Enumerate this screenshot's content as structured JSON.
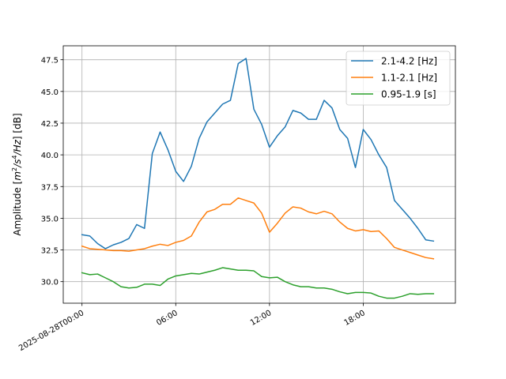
{
  "chart_data": {
    "type": "line",
    "ylabel_prefix": "Amplitude [",
    "ylabel_unit_m": "m",
    "ylabel_unit_sup2": "2",
    "ylabel_unit_s": "/s",
    "ylabel_unit_sup4": "4",
    "ylabel_unit_hz": "/Hz",
    "ylabel_suffix": "] [dB]",
    "xlabel": "",
    "ylim": [
      28.3,
      48.6
    ],
    "xlim_hours": [
      -1.2,
      23.9
    ],
    "grid": true,
    "legend_position": "top-right",
    "yticks": [
      30.0,
      32.5,
      35.0,
      37.5,
      40.0,
      42.5,
      45.0,
      47.5
    ],
    "xticks": [
      {
        "hour": 0,
        "label": "2025-08-28T00:00"
      },
      {
        "hour": 6,
        "label": "06:00"
      },
      {
        "hour": 12,
        "label": "12:00"
      },
      {
        "hour": 18,
        "label": "18:00"
      }
    ],
    "x_hours": [
      0,
      0.5,
      1,
      1.5,
      2,
      2.5,
      3,
      3.5,
      4,
      4.5,
      5,
      5.5,
      6,
      6.5,
      7,
      7.5,
      8,
      8.5,
      9,
      9.5,
      10,
      10.5,
      11,
      11.5,
      12,
      12.5,
      13,
      13.5,
      14,
      14.5,
      15,
      15.5,
      16,
      16.5,
      17,
      17.5,
      18,
      18.5,
      19,
      19.5,
      20,
      20.5,
      21,
      21.5,
      22,
      22.5
    ],
    "series": [
      {
        "name": "2.1-4.2 [Hz]",
        "color": "#1f77b4",
        "values": [
          33.7,
          33.6,
          33.0,
          32.6,
          32.9,
          33.1,
          33.4,
          34.5,
          34.2,
          40.1,
          41.8,
          40.4,
          38.7,
          37.9,
          39.1,
          41.3,
          42.6,
          43.3,
          44.0,
          44.3,
          47.2,
          47.6,
          43.6,
          42.4,
          40.6,
          41.5,
          42.2,
          43.5,
          43.3,
          42.8,
          42.8,
          44.3,
          43.7,
          42.0,
          41.3,
          39.0,
          42.0,
          41.2,
          40.0,
          39.0,
          36.4,
          35.7,
          35.0,
          34.2,
          33.3,
          33.2
        ]
      },
      {
        "name": "1.1-2.1 [Hz]",
        "color": "#ff7f0e",
        "values": [
          32.8,
          32.6,
          32.55,
          32.5,
          32.45,
          32.45,
          32.4,
          32.5,
          32.6,
          32.8,
          32.95,
          32.85,
          33.1,
          33.25,
          33.6,
          34.7,
          35.5,
          35.7,
          36.1,
          36.1,
          36.6,
          36.4,
          36.2,
          35.4,
          33.9,
          34.6,
          35.4,
          35.9,
          35.8,
          35.5,
          35.35,
          35.55,
          35.35,
          34.7,
          34.2,
          34.0,
          34.1,
          33.95,
          34.0,
          33.4,
          32.7,
          32.5,
          32.3,
          32.1,
          31.9,
          31.8
        ]
      },
      {
        "name": "0.95-1.9 [s]",
        "color": "#2ca02c",
        "values": [
          30.7,
          30.55,
          30.6,
          30.3,
          30.0,
          29.6,
          29.5,
          29.55,
          29.8,
          29.8,
          29.7,
          30.2,
          30.45,
          30.55,
          30.65,
          30.6,
          30.75,
          30.9,
          31.1,
          31.0,
          30.9,
          30.9,
          30.85,
          30.4,
          30.3,
          30.35,
          30.0,
          29.75,
          29.6,
          29.6,
          29.5,
          29.5,
          29.4,
          29.2,
          29.05,
          29.15,
          29.15,
          29.1,
          28.85,
          28.7,
          28.7,
          28.85,
          29.05,
          29.0,
          29.05,
          29.05
        ]
      }
    ]
  }
}
